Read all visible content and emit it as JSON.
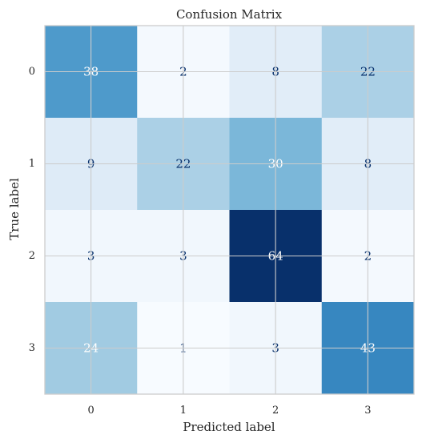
{
  "chart_data": {
    "type": "heatmap",
    "title": "Confusion Matrix",
    "xlabel": "Predicted label",
    "ylabel": "True label",
    "x_categories": [
      "0",
      "1",
      "2",
      "3"
    ],
    "y_categories": [
      "0",
      "1",
      "2",
      "3"
    ],
    "values": [
      [
        38,
        2,
        8,
        22
      ],
      [
        9,
        22,
        30,
        8
      ],
      [
        3,
        3,
        64,
        2
      ],
      [
        24,
        1,
        3,
        43
      ]
    ],
    "colormap": "Blues",
    "vmin": 1,
    "vmax": 64,
    "grid": true,
    "colorbar": false,
    "colors": {
      "text_light": "#ffffff",
      "text_dark": "#08306b",
      "axis_text": "#262626",
      "grid": "#cccccc"
    }
  }
}
